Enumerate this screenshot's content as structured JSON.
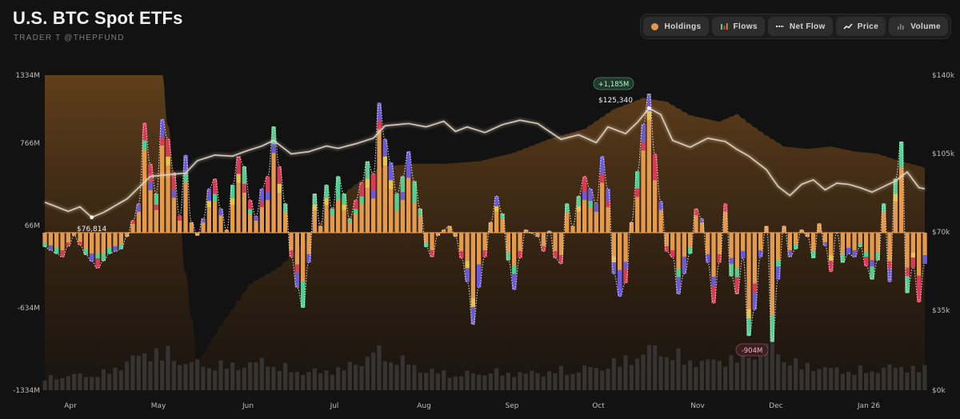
{
  "header": {
    "title": "U.S. BTC Spot ETFs",
    "subtitle": "TRADER T @THEPFUND"
  },
  "toolbar": {
    "buttons": [
      {
        "label": "Holdings",
        "icon": "dot-icon",
        "color": "#e39a4c"
      },
      {
        "label": "Flows",
        "icon": "bars-icon"
      },
      {
        "label": "Net Flow",
        "icon": "line-dash-icon"
      },
      {
        "label": "Price",
        "icon": "trend-icon"
      },
      {
        "label": "Volume",
        "icon": "volume-icon"
      }
    ]
  },
  "chart_data": {
    "type": "bar",
    "title": "U.S. BTC Spot ETFs",
    "left_axis": {
      "ticks": [
        "1334M",
        "766M",
        "66M",
        "-634M",
        "-1334M"
      ],
      "range": [
        -1334,
        1334
      ],
      "unit": "M USD"
    },
    "right_axis": {
      "ticks": [
        "$140k",
        "$105k",
        "$70k",
        "$35k",
        "$0k"
      ],
      "range": [
        0,
        140000
      ]
    },
    "x_axis": {
      "months": [
        "Apr",
        "May",
        "Jun",
        "Jul",
        "Aug",
        "Sep",
        "Oct",
        "Nov",
        "Dec",
        "Jan 26"
      ]
    },
    "annotations": {
      "price_low": "$76,814",
      "price_high": "$125,340",
      "flow_max": "+1,185M",
      "flow_min": "-904M"
    },
    "colors": {
      "net_flow_fill": "#e39a4c",
      "issuer_green": "#4fcf94",
      "issuer_red": "#d83a57",
      "issuer_purple": "#6b5ad8",
      "issuer_yellow": "#e8c54a",
      "price_line": "#e4d7c5",
      "holdings_area": "#6a4418",
      "volume": "#3a3a3a"
    },
    "series": [
      {
        "name": "Net Flow",
        "anchors": [
          [
            0,
            -60
          ],
          [
            3,
            -150
          ],
          [
            5,
            40
          ],
          [
            7,
            -130
          ],
          [
            9,
            -250
          ],
          [
            11,
            -120
          ],
          [
            13,
            -80
          ],
          [
            14,
            30
          ],
          [
            16,
            300
          ],
          [
            17,
            950
          ],
          [
            18,
            620
          ],
          [
            19,
            380
          ],
          [
            20,
            980
          ],
          [
            21,
            820
          ],
          [
            22,
            550
          ],
          [
            23,
            200
          ],
          [
            24,
            690
          ],
          [
            25,
            150
          ],
          [
            26,
            40
          ],
          [
            27,
            180
          ],
          [
            28,
            420
          ],
          [
            29,
            500
          ],
          [
            30,
            260
          ],
          [
            31,
            90
          ],
          [
            32,
            450
          ],
          [
            33,
            680
          ],
          [
            34,
            600
          ],
          [
            35,
            330
          ],
          [
            36,
            200
          ],
          [
            37,
            420
          ],
          [
            38,
            520
          ],
          [
            39,
            920
          ],
          [
            40,
            600
          ],
          [
            41,
            300
          ],
          [
            42,
            -150
          ],
          [
            43,
            -420
          ],
          [
            44,
            -600
          ],
          [
            45,
            -200
          ],
          [
            46,
            380
          ],
          [
            47,
            120
          ],
          [
            48,
            450
          ],
          [
            49,
            260
          ],
          [
            50,
            520
          ],
          [
            51,
            380
          ],
          [
            52,
            180
          ],
          [
            53,
            330
          ],
          [
            54,
            470
          ],
          [
            55,
            640
          ],
          [
            56,
            540
          ],
          [
            57,
            1110
          ],
          [
            58,
            820
          ],
          [
            59,
            630
          ],
          [
            60,
            380
          ],
          [
            61,
            520
          ],
          [
            62,
            720
          ],
          [
            63,
            480
          ],
          [
            64,
            260
          ],
          [
            65,
            -60
          ],
          [
            66,
            -150
          ],
          [
            67,
            40
          ],
          [
            68,
            90
          ],
          [
            69,
            120
          ],
          [
            70,
            30
          ],
          [
            71,
            -160
          ],
          [
            72,
            -370
          ],
          [
            73,
            -750
          ],
          [
            74,
            -420
          ],
          [
            75,
            -150
          ],
          [
            76,
            150
          ],
          [
            77,
            360
          ],
          [
            78,
            220
          ],
          [
            79,
            -180
          ],
          [
            80,
            -440
          ],
          [
            81,
            -160
          ],
          [
            82,
            90
          ],
          [
            83,
            60
          ],
          [
            84,
            30
          ],
          [
            85,
            -100
          ],
          [
            86,
            80
          ],
          [
            87,
            -160
          ],
          [
            88,
            -210
          ],
          [
            89,
            300
          ],
          [
            90,
            120
          ],
          [
            91,
            360
          ],
          [
            92,
            520
          ],
          [
            93,
            420
          ],
          [
            94,
            300
          ],
          [
            95,
            680
          ],
          [
            96,
            420
          ],
          [
            97,
            -300
          ],
          [
            98,
            -500
          ],
          [
            99,
            -380
          ],
          [
            100,
            150
          ],
          [
            101,
            560
          ],
          [
            102,
            940
          ],
          [
            103,
            1185
          ],
          [
            104,
            700
          ],
          [
            105,
            320
          ],
          [
            106,
            -100
          ],
          [
            107,
            -150
          ],
          [
            108,
            -480
          ],
          [
            109,
            -300
          ],
          [
            110,
            -120
          ],
          [
            111,
            260
          ],
          [
            112,
            180
          ],
          [
            113,
            -200
          ],
          [
            114,
            -560
          ],
          [
            115,
            -200
          ],
          [
            116,
            300
          ],
          [
            117,
            -320
          ],
          [
            118,
            -480
          ],
          [
            119,
            -160
          ],
          [
            120,
            -850
          ],
          [
            121,
            -620
          ],
          [
            122,
            -150
          ],
          [
            123,
            120
          ],
          [
            124,
            -904
          ],
          [
            125,
            -350
          ],
          [
            126,
            120
          ],
          [
            127,
            -150
          ],
          [
            128,
            -80
          ],
          [
            129,
            90
          ],
          [
            130,
            30
          ],
          [
            131,
            -160
          ],
          [
            132,
            140
          ],
          [
            133,
            -50
          ],
          [
            134,
            -280
          ],
          [
            135,
            60
          ],
          [
            136,
            -200
          ],
          [
            137,
            -120
          ],
          [
            138,
            -150
          ],
          [
            139,
            -60
          ],
          [
            140,
            -230
          ],
          [
            141,
            -350
          ],
          [
            142,
            -180
          ],
          [
            143,
            300
          ],
          [
            144,
            -370
          ],
          [
            145,
            500
          ],
          [
            146,
            800
          ],
          [
            147,
            -470
          ],
          [
            148,
            -240
          ],
          [
            149,
            -550
          ],
          [
            150,
            -210
          ]
        ]
      },
      {
        "name": "Price",
        "anchors": [
          [
            0,
            83500
          ],
          [
            4,
            79500
          ],
          [
            6,
            81500
          ],
          [
            8,
            76814
          ],
          [
            10,
            79000
          ],
          [
            14,
            85000
          ],
          [
            18,
            95000
          ],
          [
            20,
            95500
          ],
          [
            24,
            96500
          ],
          [
            26,
            102000
          ],
          [
            29,
            104500
          ],
          [
            32,
            104000
          ],
          [
            34,
            106000
          ],
          [
            37,
            108500
          ],
          [
            39,
            111000
          ],
          [
            42,
            105000
          ],
          [
            45,
            106000
          ],
          [
            48,
            108500
          ],
          [
            50,
            107500
          ],
          [
            53,
            109500
          ],
          [
            56,
            112000
          ],
          [
            58,
            117500
          ],
          [
            62,
            118500
          ],
          [
            65,
            117000
          ],
          [
            68,
            119500
          ],
          [
            70,
            115000
          ],
          [
            72,
            117000
          ],
          [
            75,
            114500
          ],
          [
            78,
            118000
          ],
          [
            81,
            120000
          ],
          [
            84,
            118500
          ],
          [
            86,
            115000
          ],
          [
            88,
            111500
          ],
          [
            91,
            113500
          ],
          [
            94,
            110000
          ],
          [
            96,
            117000
          ],
          [
            99,
            114000
          ],
          [
            101,
            119000
          ],
          [
            103,
            125340
          ],
          [
            105,
            122500
          ],
          [
            107,
            111000
          ],
          [
            110,
            108000
          ],
          [
            113,
            112000
          ],
          [
            116,
            110500
          ],
          [
            118,
            107000
          ],
          [
            120,
            104000
          ],
          [
            123,
            98000
          ],
          [
            125,
            90500
          ],
          [
            127,
            86500
          ],
          [
            129,
            91500
          ],
          [
            131,
            93500
          ],
          [
            133,
            89000
          ],
          [
            135,
            92000
          ],
          [
            137,
            91500
          ],
          [
            139,
            90000
          ],
          [
            141,
            88000
          ],
          [
            143,
            90500
          ],
          [
            145,
            93000
          ],
          [
            147,
            97000
          ],
          [
            149,
            90000
          ],
          [
            150,
            89500
          ]
        ]
      },
      {
        "name": "Holdings",
        "anchors": [
          [
            0,
            1334
          ],
          [
            10,
            1334
          ],
          [
            14,
            1334
          ],
          [
            20,
            1334
          ],
          [
            26,
            -1100
          ],
          [
            30,
            -760
          ],
          [
            35,
            -390
          ],
          [
            40,
            -240
          ],
          [
            43,
            -90
          ],
          [
            48,
            220
          ],
          [
            52,
            420
          ],
          [
            57,
            590
          ],
          [
            62,
            620
          ],
          [
            68,
            620
          ],
          [
            74,
            640
          ],
          [
            80,
            710
          ],
          [
            86,
            820
          ],
          [
            92,
            900
          ],
          [
            97,
            1060
          ],
          [
            102,
            1150
          ],
          [
            106,
            1120
          ],
          [
            110,
            1010
          ],
          [
            115,
            960
          ],
          [
            118,
            1020
          ],
          [
            122,
            880
          ],
          [
            126,
            760
          ],
          [
            130,
            740
          ],
          [
            134,
            760
          ],
          [
            138,
            720
          ],
          [
            142,
            700
          ],
          [
            146,
            640
          ],
          [
            150,
            590
          ]
        ]
      },
      {
        "name": "Volume",
        "anchors": [
          [
            0,
            0.18
          ],
          [
            10,
            0.24
          ],
          [
            15,
            0.45
          ],
          [
            19,
            0.58
          ],
          [
            25,
            0.38
          ],
          [
            33,
            0.35
          ],
          [
            38,
            0.42
          ],
          [
            42,
            0.28
          ],
          [
            47,
            0.26
          ],
          [
            52,
            0.34
          ],
          [
            56,
            0.55
          ],
          [
            60,
            0.46
          ],
          [
            64,
            0.3
          ],
          [
            70,
            0.22
          ],
          [
            76,
            0.26
          ],
          [
            82,
            0.24
          ],
          [
            88,
            0.28
          ],
          [
            94,
            0.32
          ],
          [
            100,
            0.46
          ],
          [
            104,
            0.6
          ],
          [
            108,
            0.48
          ],
          [
            112,
            0.4
          ],
          [
            116,
            0.44
          ],
          [
            120,
            0.56
          ],
          [
            124,
            0.62
          ],
          [
            128,
            0.38
          ],
          [
            134,
            0.3
          ],
          [
            140,
            0.28
          ],
          [
            146,
            0.34
          ],
          [
            150,
            0.3
          ]
        ]
      }
    ],
    "legend": "top-right",
    "grid": false
  }
}
